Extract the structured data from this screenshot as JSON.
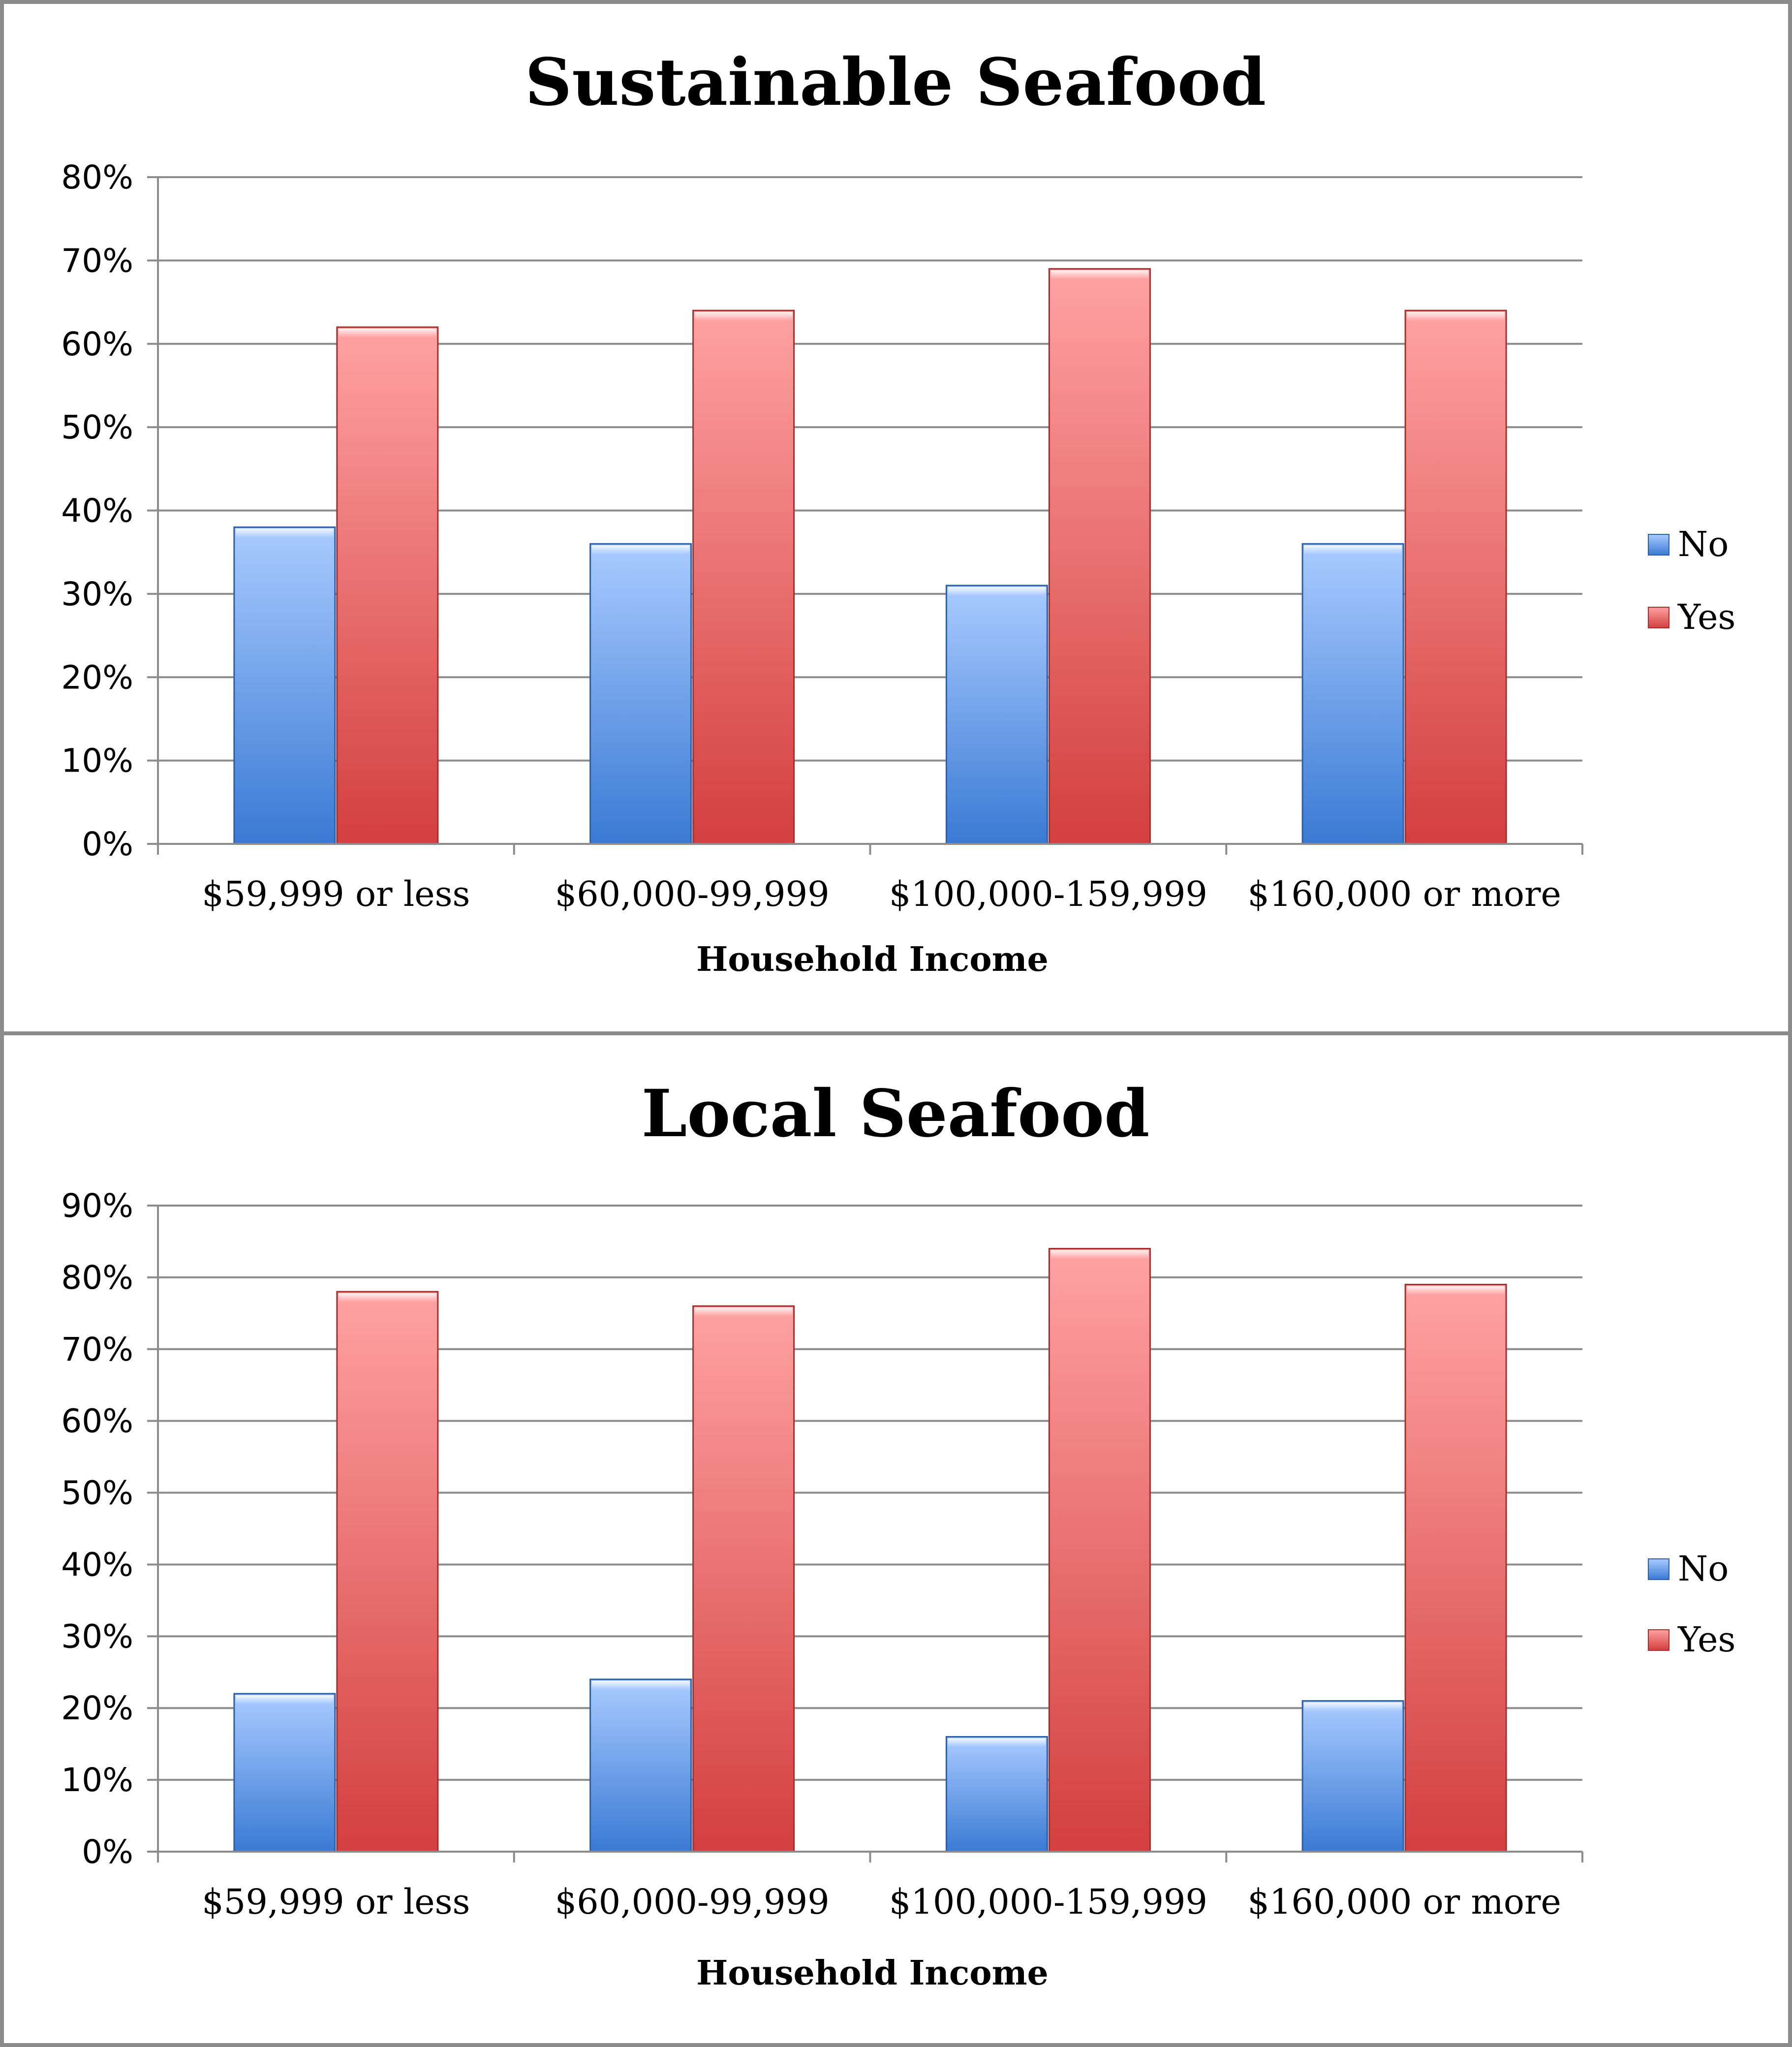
{
  "colors": {
    "no_top": "#a9cbff",
    "no_bottom": "#3a7ad4",
    "yes_top": "#ffa2a2",
    "yes_bottom": "#d33f3f",
    "grid": "#8c8c8c",
    "frame": "#8c8c8c"
  },
  "chart_data": [
    {
      "type": "bar",
      "title": "Sustainable Seafood",
      "xlabel": "Household Income",
      "ylabel": "",
      "categories": [
        "$59,999 or less",
        "$60,000-99,999",
        "$100,000-159,999",
        "$160,000 or more"
      ],
      "series": [
        {
          "name": "No",
          "values": [
            38,
            36,
            31,
            36
          ]
        },
        {
          "name": "Yes",
          "values": [
            62,
            64,
            69,
            64
          ]
        }
      ],
      "ylim": [
        0,
        80
      ],
      "yticks": [
        "0%",
        "10%",
        "20%",
        "30%",
        "40%",
        "50%",
        "60%",
        "70%",
        "80%"
      ],
      "grid": true,
      "legend": "right"
    },
    {
      "type": "bar",
      "title": "Local Seafood",
      "xlabel": "Household Income",
      "ylabel": "",
      "categories": [
        "$59,999 or less",
        "$60,000-99,999",
        "$100,000-159,999",
        "$160,000 or more"
      ],
      "series": [
        {
          "name": "No",
          "values": [
            22,
            24,
            16,
            21
          ]
        },
        {
          "name": "Yes",
          "values": [
            78,
            76,
            84,
            79
          ]
        }
      ],
      "ylim": [
        0,
        90
      ],
      "yticks": [
        "0%",
        "10%",
        "20%",
        "30%",
        "40%",
        "50%",
        "60%",
        "70%",
        "80%",
        "90%"
      ],
      "grid": true,
      "legend": "right"
    }
  ]
}
